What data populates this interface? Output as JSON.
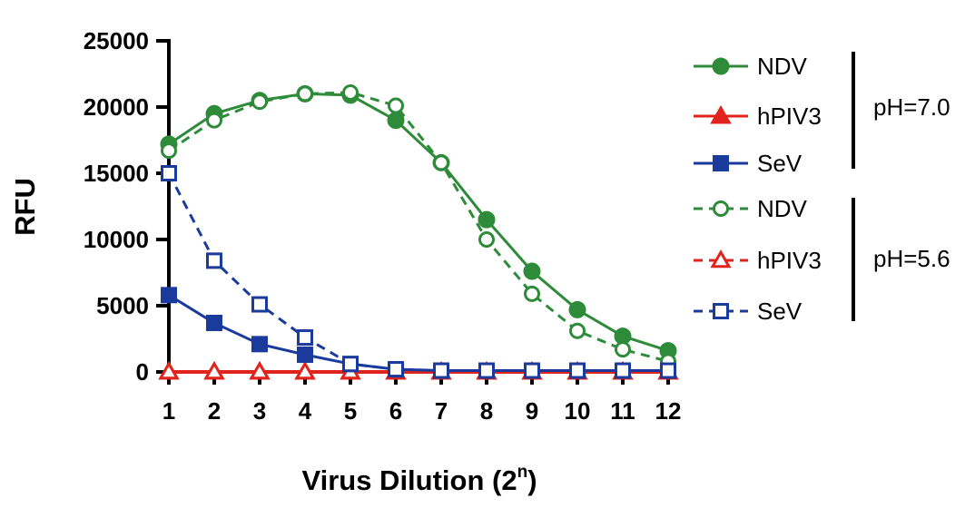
{
  "chart_data": {
    "type": "line",
    "xlabel": "Virus Dilution (2",
    "xlabel_sup": "n",
    "xlabel_close": ")",
    "ylabel": "RFU",
    "ylim": [
      0,
      25000
    ],
    "yticks": [
      "0",
      "5000",
      "10000",
      "15000",
      "20000",
      "25000"
    ],
    "ytick_values": [
      0,
      5000,
      10000,
      15000,
      20000,
      25000
    ],
    "x": [
      1,
      2,
      3,
      4,
      5,
      6,
      7,
      8,
      9,
      10,
      11,
      12
    ],
    "xticks": [
      "1",
      "2",
      "3",
      "4",
      "5",
      "6",
      "7",
      "8",
      "9",
      "10",
      "11",
      "12"
    ],
    "groups": [
      {
        "label": "pH=7.0"
      },
      {
        "label": "pH=5.6"
      }
    ],
    "series": [
      {
        "name": "NDV",
        "group": 0,
        "color": "#2e8b3a",
        "marker": "circle",
        "filled": true,
        "dashed": false,
        "values": [
          17200,
          19500,
          20500,
          21000,
          20900,
          19000,
          15800,
          11500,
          7600,
          4700,
          2700,
          1600
        ]
      },
      {
        "name": "hPIV3",
        "group": 0,
        "color": "#e0231c",
        "marker": "triangle",
        "filled": true,
        "dashed": false,
        "values": [
          0,
          0,
          0,
          0,
          0,
          0,
          0,
          0,
          0,
          0,
          0,
          0
        ]
      },
      {
        "name": "SeV",
        "group": 0,
        "color": "#1a3a9c",
        "marker": "square",
        "filled": true,
        "dashed": false,
        "values": [
          5800,
          3700,
          2100,
          1300,
          600,
          200,
          100,
          100,
          100,
          100,
          100,
          100
        ]
      },
      {
        "name": "NDV",
        "group": 1,
        "color": "#2e8b3a",
        "marker": "circle",
        "filled": false,
        "dashed": true,
        "values": [
          16700,
          19000,
          20400,
          21000,
          21100,
          20100,
          15800,
          10000,
          5900,
          3100,
          1700,
          800
        ]
      },
      {
        "name": "hPIV3",
        "group": 1,
        "color": "#e0231c",
        "marker": "triangle",
        "filled": false,
        "dashed": true,
        "values": [
          0,
          0,
          0,
          0,
          0,
          0,
          0,
          0,
          0,
          0,
          0,
          0
        ]
      },
      {
        "name": "SeV",
        "group": 1,
        "color": "#1a3a9c",
        "marker": "square",
        "filled": false,
        "dashed": true,
        "values": [
          15000,
          8400,
          5100,
          2600,
          600,
          200,
          100,
          100,
          100,
          100,
          100,
          100
        ]
      }
    ]
  }
}
